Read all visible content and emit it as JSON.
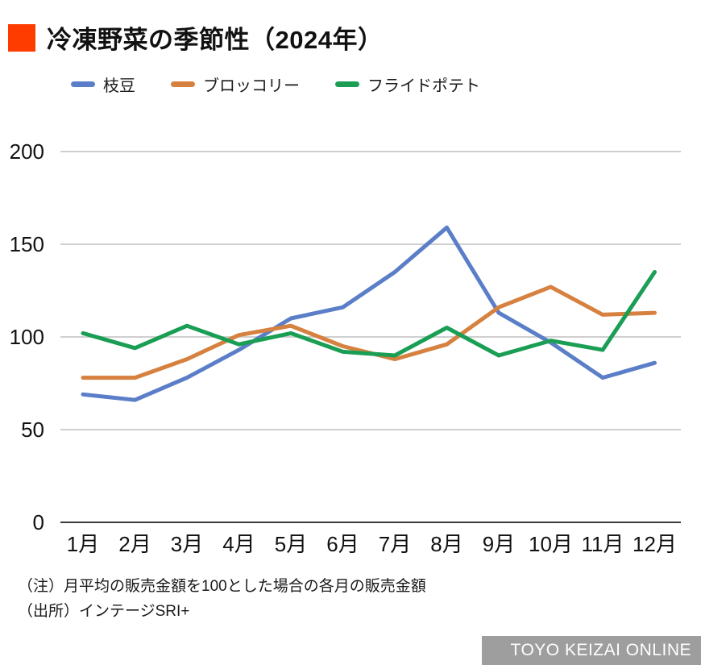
{
  "header": {
    "title": "冷凍野菜の季節性（2024年）",
    "accent_color": "#ff3c00"
  },
  "legend": [
    {
      "label": "枝豆",
      "color": "#5b7ec8"
    },
    {
      "label": "ブロッコリー",
      "color": "#d6813f"
    },
    {
      "label": "フライドポテト",
      "color": "#1a9e54"
    }
  ],
  "chart_data": {
    "type": "line",
    "title": "冷凍野菜の季節性（2024年）",
    "categories": [
      "1月",
      "2月",
      "3月",
      "4月",
      "5月",
      "6月",
      "7月",
      "8月",
      "9月",
      "10月",
      "11月",
      "12月"
    ],
    "series": [
      {
        "name": "枝豆",
        "color": "#5b7ec8",
        "values": [
          69,
          66,
          78,
          93,
          110,
          116,
          135,
          159,
          113,
          97,
          78,
          86
        ]
      },
      {
        "name": "ブロッコリー",
        "color": "#d6813f",
        "values": [
          78,
          78,
          88,
          101,
          106,
          95,
          88,
          96,
          116,
          127,
          112,
          113
        ]
      },
      {
        "name": "フライドポテト",
        "color": "#1a9e54",
        "values": [
          102,
          94,
          106,
          96,
          102,
          92,
          90,
          105,
          90,
          98,
          93,
          135
        ]
      }
    ],
    "xlabel": "",
    "ylabel": "",
    "ylim": [
      0,
      200
    ],
    "yticks": [
      0,
      50,
      100,
      150,
      200
    ],
    "grid": true,
    "legend_position": "top",
    "baseline_note": "月平均=100"
  },
  "notes": {
    "note1": "（注）月平均の販売金額を100とした場合の各月の販売金額",
    "note2": "（出所）インテージSRI+"
  },
  "footer": {
    "brand": "TOYO KEIZAI ONLINE",
    "bar_color": "#9e9e9e"
  }
}
